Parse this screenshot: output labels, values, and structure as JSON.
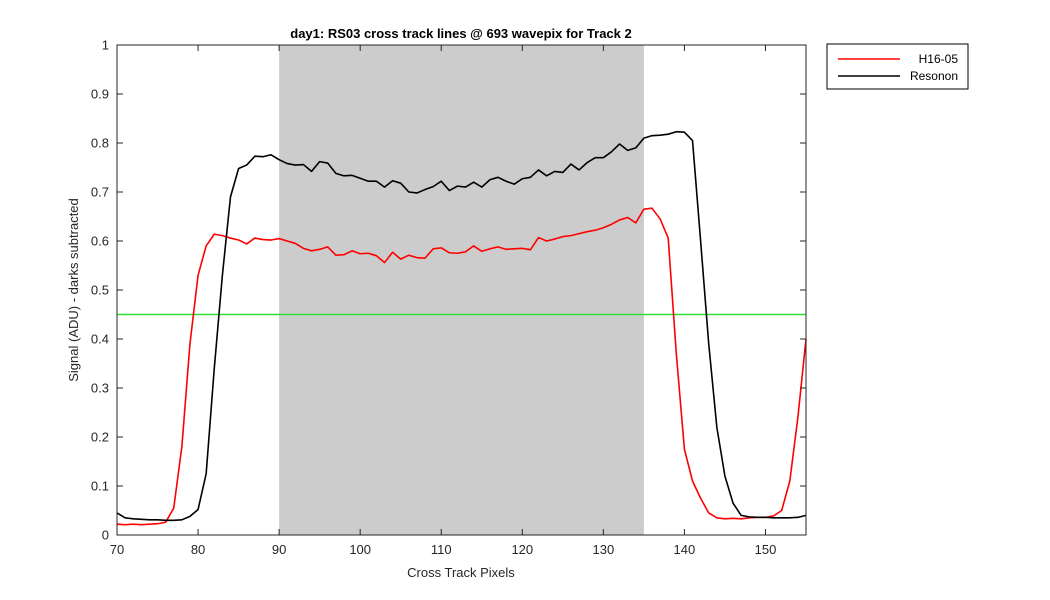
{
  "chart_data": {
    "type": "line",
    "title": "day1: RS03  cross track lines @ 693 wavepix for Track 2",
    "xlabel": "Cross Track Pixels",
    "ylabel": "Signal (ADU) - darks subtracted",
    "xlim": [
      70,
      155
    ],
    "ylim": [
      0,
      1
    ],
    "xticks": [
      "70",
      "80",
      "90",
      "100",
      "110",
      "120",
      "130",
      "140",
      "150"
    ],
    "yticks": [
      "0",
      "0.1",
      "0.2",
      "0.3",
      "0.4",
      "0.5",
      "0.6",
      "0.7",
      "0.8",
      "0.9",
      "1"
    ],
    "grid": false,
    "legend_position": "outside-top-right",
    "shaded_region": {
      "x_start": 90,
      "x_end": 135,
      "color": "#cccccc"
    },
    "threshold_line": {
      "y": 0.45,
      "color": "#33dd33"
    },
    "x": [
      70,
      71,
      72,
      73,
      74,
      75,
      76,
      77,
      78,
      79,
      80,
      81,
      82,
      83,
      84,
      85,
      86,
      87,
      88,
      89,
      90,
      91,
      92,
      93,
      94,
      95,
      96,
      97,
      98,
      99,
      100,
      101,
      102,
      103,
      104,
      105,
      106,
      107,
      108,
      109,
      110,
      111,
      112,
      113,
      114,
      115,
      116,
      117,
      118,
      119,
      120,
      121,
      122,
      123,
      124,
      125,
      126,
      127,
      128,
      129,
      130,
      131,
      132,
      133,
      134,
      135,
      136,
      137,
      138,
      139,
      140,
      141,
      142,
      143,
      144,
      145,
      146,
      147,
      148,
      149,
      150,
      151,
      152,
      153,
      154,
      155
    ],
    "series": [
      {
        "name": "H16-05",
        "color": "#ff0000",
        "values": [
          0.022,
          0.021,
          0.022,
          0.021,
          0.022,
          0.023,
          0.026,
          0.055,
          0.18,
          0.39,
          0.53,
          0.59,
          0.614,
          0.611,
          0.606,
          0.602,
          0.594,
          0.606,
          0.603,
          0.602,
          0.605,
          0.6,
          0.595,
          0.585,
          0.58,
          0.583,
          0.588,
          0.571,
          0.572,
          0.58,
          0.574,
          0.575,
          0.57,
          0.556,
          0.577,
          0.563,
          0.571,
          0.566,
          0.565,
          0.584,
          0.586,
          0.576,
          0.575,
          0.578,
          0.59,
          0.579,
          0.584,
          0.588,
          0.583,
          0.584,
          0.585,
          0.582,
          0.607,
          0.6,
          0.604,
          0.609,
          0.611,
          0.615,
          0.619,
          0.622,
          0.627,
          0.634,
          0.643,
          0.648,
          0.637,
          0.665,
          0.667,
          0.645,
          0.606,
          0.37,
          0.175,
          0.11,
          0.075,
          0.045,
          0.035,
          0.033,
          0.034,
          0.033,
          0.035,
          0.036,
          0.036,
          0.039,
          0.05,
          0.11,
          0.24,
          0.4
        ]
      },
      {
        "name": "Resonon",
        "color": "#000000",
        "values": [
          0.045,
          0.035,
          0.033,
          0.032,
          0.031,
          0.031,
          0.03,
          0.03,
          0.031,
          0.038,
          0.052,
          0.125,
          0.34,
          0.53,
          0.69,
          0.748,
          0.755,
          0.773,
          0.772,
          0.776,
          0.766,
          0.758,
          0.755,
          0.756,
          0.742,
          0.762,
          0.759,
          0.738,
          0.733,
          0.734,
          0.728,
          0.722,
          0.722,
          0.71,
          0.723,
          0.718,
          0.7,
          0.698,
          0.705,
          0.711,
          0.722,
          0.703,
          0.712,
          0.71,
          0.72,
          0.71,
          0.725,
          0.73,
          0.722,
          0.716,
          0.727,
          0.73,
          0.745,
          0.733,
          0.742,
          0.74,
          0.757,
          0.745,
          0.76,
          0.77,
          0.77,
          0.782,
          0.798,
          0.785,
          0.79,
          0.81,
          0.815,
          0.816,
          0.818,
          0.823,
          0.822,
          0.805,
          0.6,
          0.39,
          0.22,
          0.12,
          0.065,
          0.04,
          0.037,
          0.036,
          0.036,
          0.035,
          0.035,
          0.035,
          0.036,
          0.04
        ]
      }
    ]
  }
}
